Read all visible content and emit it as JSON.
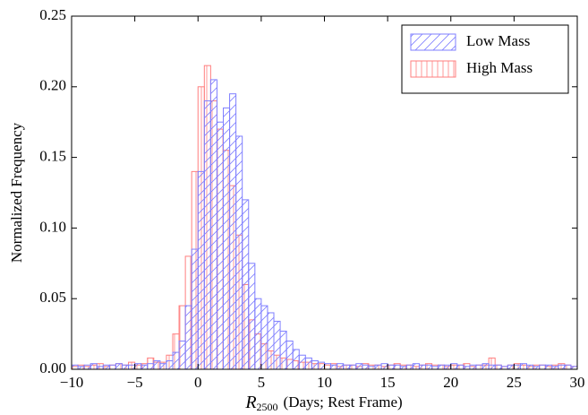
{
  "chart_data": {
    "type": "histogram",
    "x_label": {
      "symbol": "R",
      "subscript": "2500",
      "text": "(Days; Rest Frame)"
    },
    "y_label": "Normalized Frequency",
    "bins": [
      -10,
      -9.5,
      -9,
      -8.5,
      -8,
      -7.5,
      -7,
      -6.5,
      -6,
      -5.5,
      -5,
      -4.5,
      -4,
      -3.5,
      -3,
      -2.5,
      -2,
      -1.5,
      -1,
      -0.5,
      0,
      0.5,
      1,
      1.5,
      2,
      2.5,
      3,
      3.5,
      4,
      4.5,
      5,
      5.5,
      6,
      6.5,
      7,
      7.5,
      8,
      8.5,
      9,
      9.5,
      10,
      10.5,
      11,
      11.5,
      12,
      12.5,
      13,
      13.5,
      14,
      14.5,
      15,
      15.5,
      16,
      16.5,
      17,
      17.5,
      18,
      18.5,
      19,
      19.5,
      20,
      20.5,
      21,
      21.5,
      22,
      22.5,
      23,
      23.5,
      24,
      24.5,
      25,
      25.5,
      26,
      26.5,
      27,
      27.5,
      28,
      28.5,
      29,
      29.5,
      30
    ],
    "series": [
      {
        "name": "High Mass",
        "color": "#ff7f7f",
        "hatch": "vertical",
        "values": [
          0.002,
          0.003,
          0.002,
          0.003,
          0.004,
          0.002,
          0.003,
          0.004,
          0.003,
          0.005,
          0.003,
          0.004,
          0.008,
          0.005,
          0.005,
          0.01,
          0.025,
          0.045,
          0.08,
          0.14,
          0.2,
          0.215,
          0.19,
          0.17,
          0.155,
          0.13,
          0.095,
          0.06,
          0.035,
          0.025,
          0.018,
          0.013,
          0.01,
          0.008,
          0.007,
          0.006,
          0.005,
          0.005,
          0.004,
          0.004,
          0.003,
          0.004,
          0.002,
          0.003,
          0.003,
          0.002,
          0.004,
          0.003,
          0.003,
          0.002,
          0.003,
          0.004,
          0.003,
          0.003,
          0.002,
          0.003,
          0.004,
          0.003,
          0.003,
          0.002,
          0.003,
          0.003,
          0.004,
          0.002,
          0.003,
          0.003,
          0.008,
          0.003,
          0.002,
          0.003,
          0.004,
          0.003,
          0.002,
          0.003,
          0.003,
          0.002,
          0.003,
          0.004,
          0.003,
          0.002
        ]
      },
      {
        "name": "Low Mass",
        "color": "#7f7fff",
        "hatch": "diagonal",
        "values": [
          0.003,
          0.002,
          0.003,
          0.004,
          0.002,
          0.003,
          0.003,
          0.004,
          0.003,
          0.003,
          0.004,
          0.003,
          0.004,
          0.006,
          0.004,
          0.006,
          0.012,
          0.02,
          0.045,
          0.085,
          0.14,
          0.19,
          0.205,
          0.175,
          0.185,
          0.195,
          0.165,
          0.12,
          0.075,
          0.05,
          0.045,
          0.04,
          0.034,
          0.027,
          0.02,
          0.014,
          0.01,
          0.008,
          0.006,
          0.005,
          0.004,
          0.003,
          0.004,
          0.003,
          0.003,
          0.004,
          0.003,
          0.002,
          0.003,
          0.004,
          0.003,
          0.003,
          0.002,
          0.003,
          0.004,
          0.003,
          0.003,
          0.002,
          0.003,
          0.003,
          0.004,
          0.003,
          0.002,
          0.003,
          0.003,
          0.004,
          0.003,
          0.003,
          0.002,
          0.003,
          0.003,
          0.004,
          0.003,
          0.002,
          0.003,
          0.003,
          0.002,
          0.003,
          0.003,
          0.002
        ]
      }
    ],
    "xlim": [
      -10,
      30
    ],
    "xticks": [
      {
        "value": -10,
        "label": "−10"
      },
      {
        "value": -5,
        "label": "−5"
      },
      0,
      5,
      10,
      15,
      20,
      25,
      30
    ],
    "ylim": [
      0,
      0.25
    ],
    "yticks": [
      {
        "value": 0,
        "label": "0.00"
      },
      0.05,
      {
        "value": 0.1,
        "label": "0.10"
      },
      0.15,
      {
        "value": 0.2,
        "label": "0.20"
      },
      0.25
    ],
    "legend": "upper right"
  }
}
